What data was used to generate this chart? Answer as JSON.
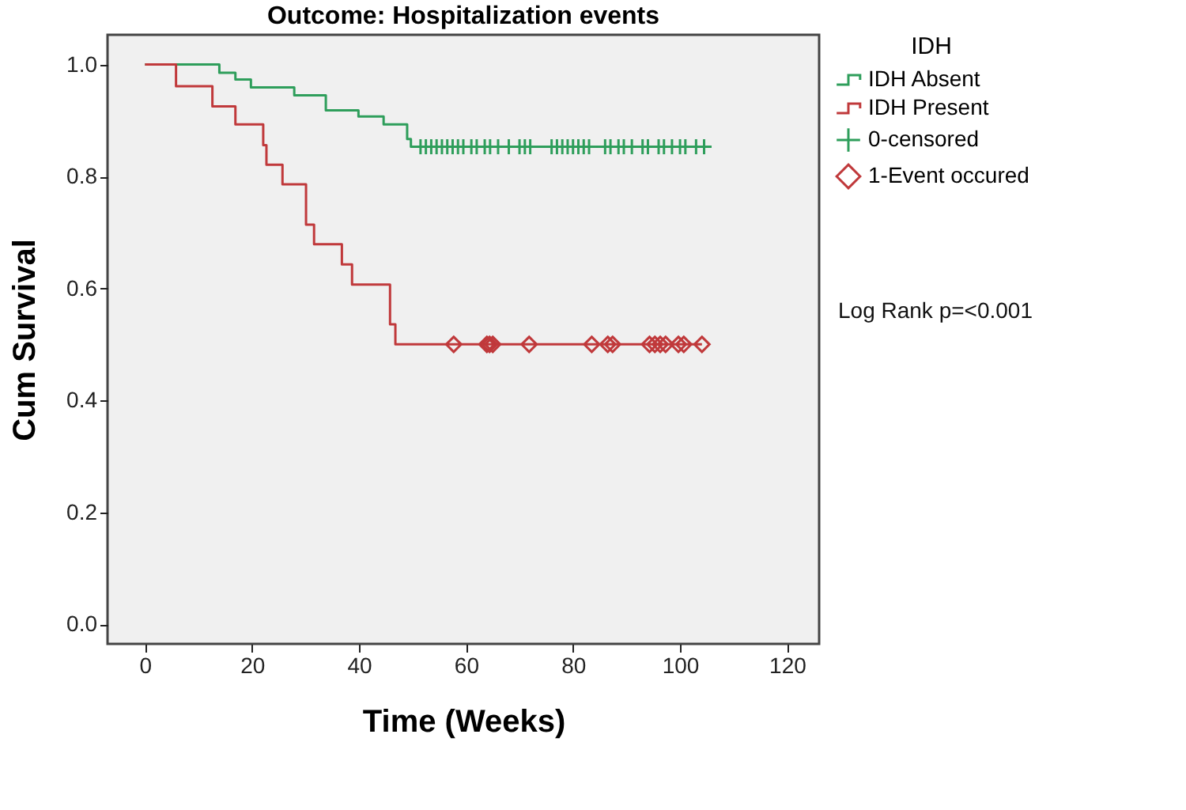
{
  "chart_data": {
    "type": "step",
    "title": "Outcome: Hospitalization events",
    "xlabel": "Time (Weeks)",
    "ylabel": "Cum Survival",
    "legend_title": "IDH",
    "legend": "right",
    "xlim": [
      -7,
      126
    ],
    "ylim": [
      -0.035,
      1.053
    ],
    "xticks": [
      0,
      20,
      40,
      60,
      80,
      100,
      120
    ],
    "yticks": [
      {
        "value": 0,
        "label": "0.0"
      },
      0.2,
      0.4,
      0.6,
      0.8,
      {
        "value": 1,
        "label": "1.0"
      }
    ],
    "grid": false,
    "series": [
      {
        "name": "IDH Absent",
        "color": "#2e9e5b",
        "marker": "none",
        "x": [
          0,
          13.9,
          16.9,
          19.8,
          27.9,
          33.8,
          39.9,
          44.6,
          49.0,
          49.7,
          105
        ],
        "values": [
          1,
          0.985,
          0.973,
          0.959,
          0.945,
          0.918,
          0.907,
          0.893,
          0.867,
          0.853,
          0.853
        ]
      },
      {
        "name": "IDH Present",
        "color": "#c0393b",
        "marker": "none",
        "x": [
          0,
          5.8,
          12.6,
          16.9,
          22.1,
          22.7,
          25.7,
          30.1,
          31.6,
          36.8,
          38.7,
          45.8,
          46.8,
          104.1
        ],
        "values": [
          1,
          0.961,
          0.925,
          0.893,
          0.856,
          0.821,
          0.786,
          0.714,
          0.679,
          0.643,
          0.607,
          0.536,
          0.5,
          0.5
        ]
      },
      {
        "name": "0-censored",
        "type": "scatter",
        "color": "#2e9e5b",
        "marker": "cross",
        "x": [
          51.5,
          52.5,
          53.5,
          54.5,
          55.5,
          56.5,
          57.5,
          58.5,
          59.5,
          61,
          62,
          63.5,
          64.5,
          66,
          68,
          70,
          71,
          72,
          76,
          77,
          78,
          79,
          80,
          81,
          82,
          83,
          86,
          87,
          88.5,
          89.5,
          91,
          93,
          94,
          96,
          97,
          98.5,
          100,
          101,
          103,
          104.5
        ],
        "values": [
          0.853,
          0.853,
          0.853,
          0.853,
          0.853,
          0.853,
          0.853,
          0.853,
          0.853,
          0.853,
          0.853,
          0.853,
          0.853,
          0.853,
          0.853,
          0.853,
          0.853,
          0.853,
          0.853,
          0.853,
          0.853,
          0.853,
          0.853,
          0.853,
          0.853,
          0.853,
          0.853,
          0.853,
          0.853,
          0.853,
          0.853,
          0.853,
          0.853,
          0.853,
          0.853,
          0.853,
          0.853,
          0.853,
          0.853,
          0.853
        ]
      },
      {
        "name": "1-Event occured",
        "type": "scatter",
        "color": "#c0393b",
        "marker": "diamond",
        "x": [
          57.7,
          63.9,
          64.4,
          65.0,
          71.8,
          83.5,
          86.5,
          87.4,
          94.3,
          95.3,
          96.3,
          97.3,
          99.7,
          100.7,
          104.1
        ],
        "values": [
          0.5,
          0.5,
          0.5,
          0.5,
          0.5,
          0.5,
          0.5,
          0.5,
          0.5,
          0.5,
          0.5,
          0.5,
          0.5,
          0.5,
          0.5
        ]
      }
    ],
    "annotations": [
      "Log Rank p=<0.001"
    ]
  }
}
